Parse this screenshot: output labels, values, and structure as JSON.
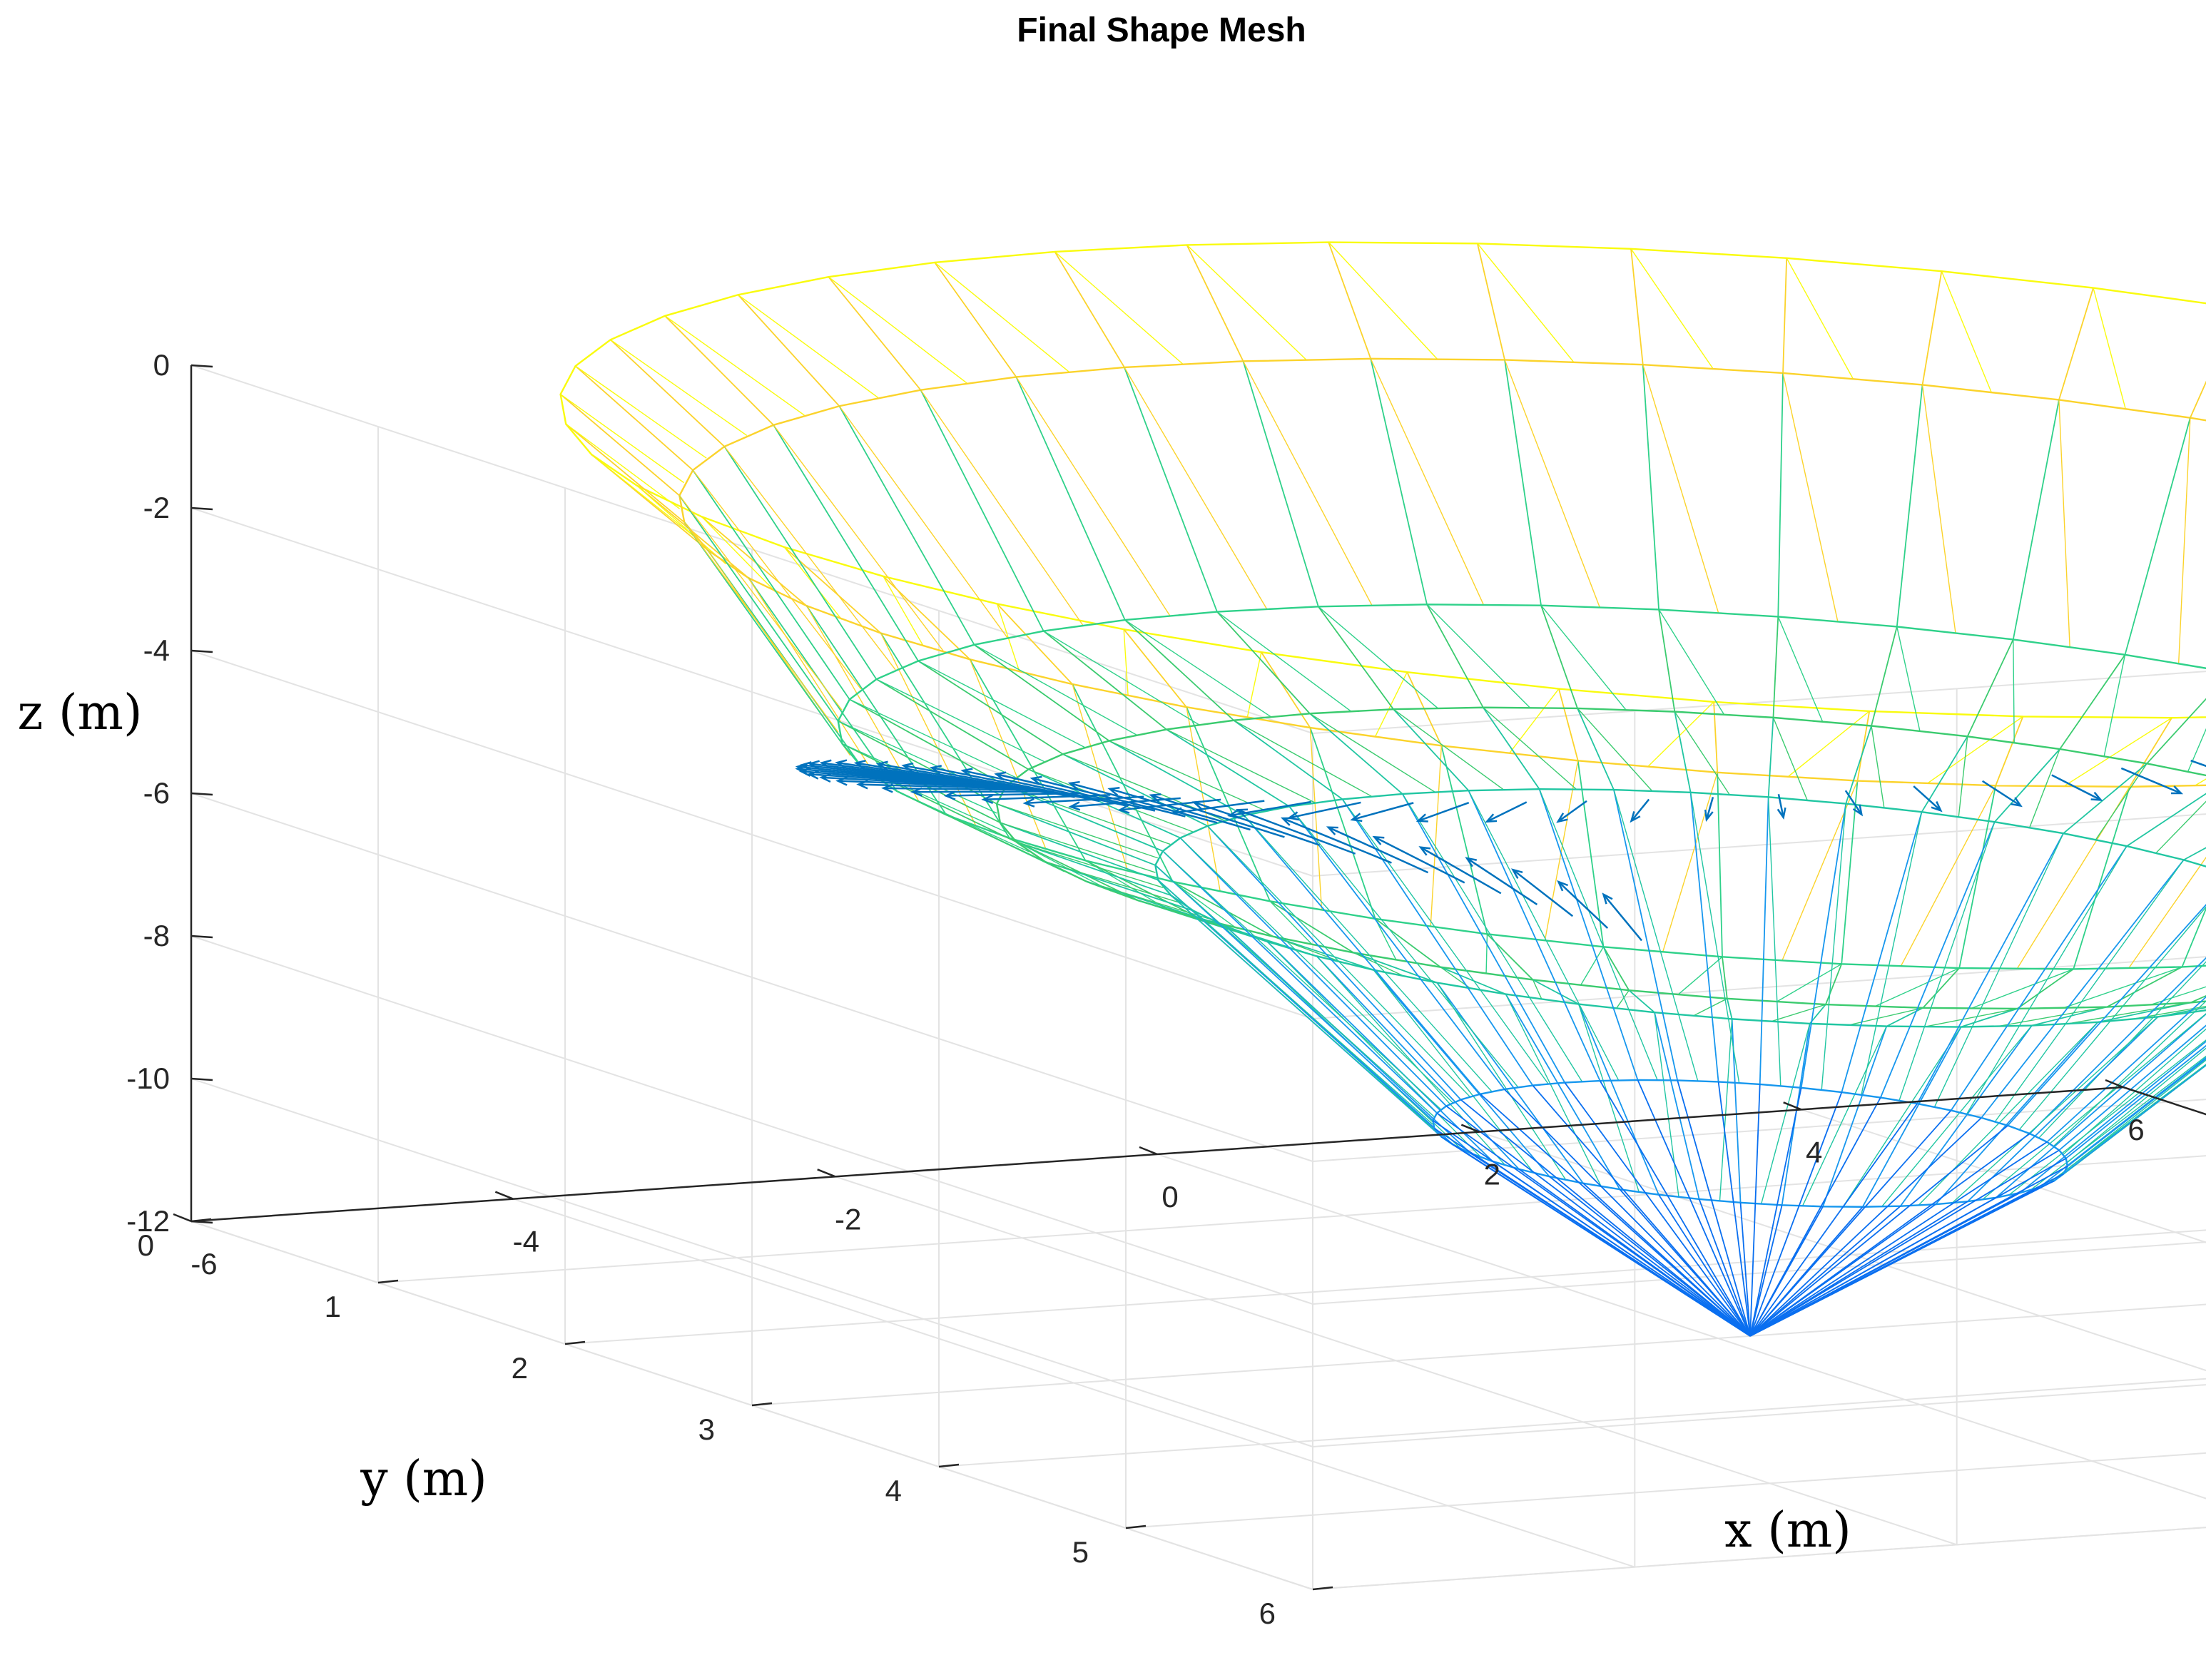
{
  "chart_data": {
    "type": "mesh3d",
    "title": "Final Shape Mesh",
    "xlabel": "x (m)",
    "ylabel": "y (m)",
    "zlabel": "z (m)",
    "xlim": [
      -6,
      6
    ],
    "ylim": [
      0,
      6
    ],
    "zlim": [
      -12,
      0
    ],
    "xticks": [
      -6,
      -4,
      -2,
      0,
      2,
      4,
      6
    ],
    "yticks": [
      0,
      1,
      2,
      3,
      4,
      5,
      6
    ],
    "zticks": [
      0,
      -2,
      -4,
      -6,
      -8,
      -10,
      -12
    ],
    "grid": true,
    "colormap": "parula",
    "vector_color": "#0072BD",
    "rings": [
      {
        "z": 0,
        "radius": 6,
        "color": "#f9fb0e"
      },
      {
        "z": -1.3,
        "radius": 5.4,
        "color": "#fbd32c"
      },
      {
        "z": -4.3,
        "radius": 4.6,
        "color": "#2fd18a"
      },
      {
        "z": -5.3,
        "radius": 3.8,
        "color": "#3bcb6f"
      },
      {
        "z": -6.0,
        "radius": 3.0,
        "color": "#21c6a2"
      },
      {
        "z": -9.3,
        "radius": 1.6,
        "color": "#1797ee"
      },
      {
        "z": -12,
        "radius": 0,
        "color": "#0a6ff0"
      }
    ],
    "apex": {
      "x": 0,
      "y": 0,
      "z": -12
    }
  }
}
